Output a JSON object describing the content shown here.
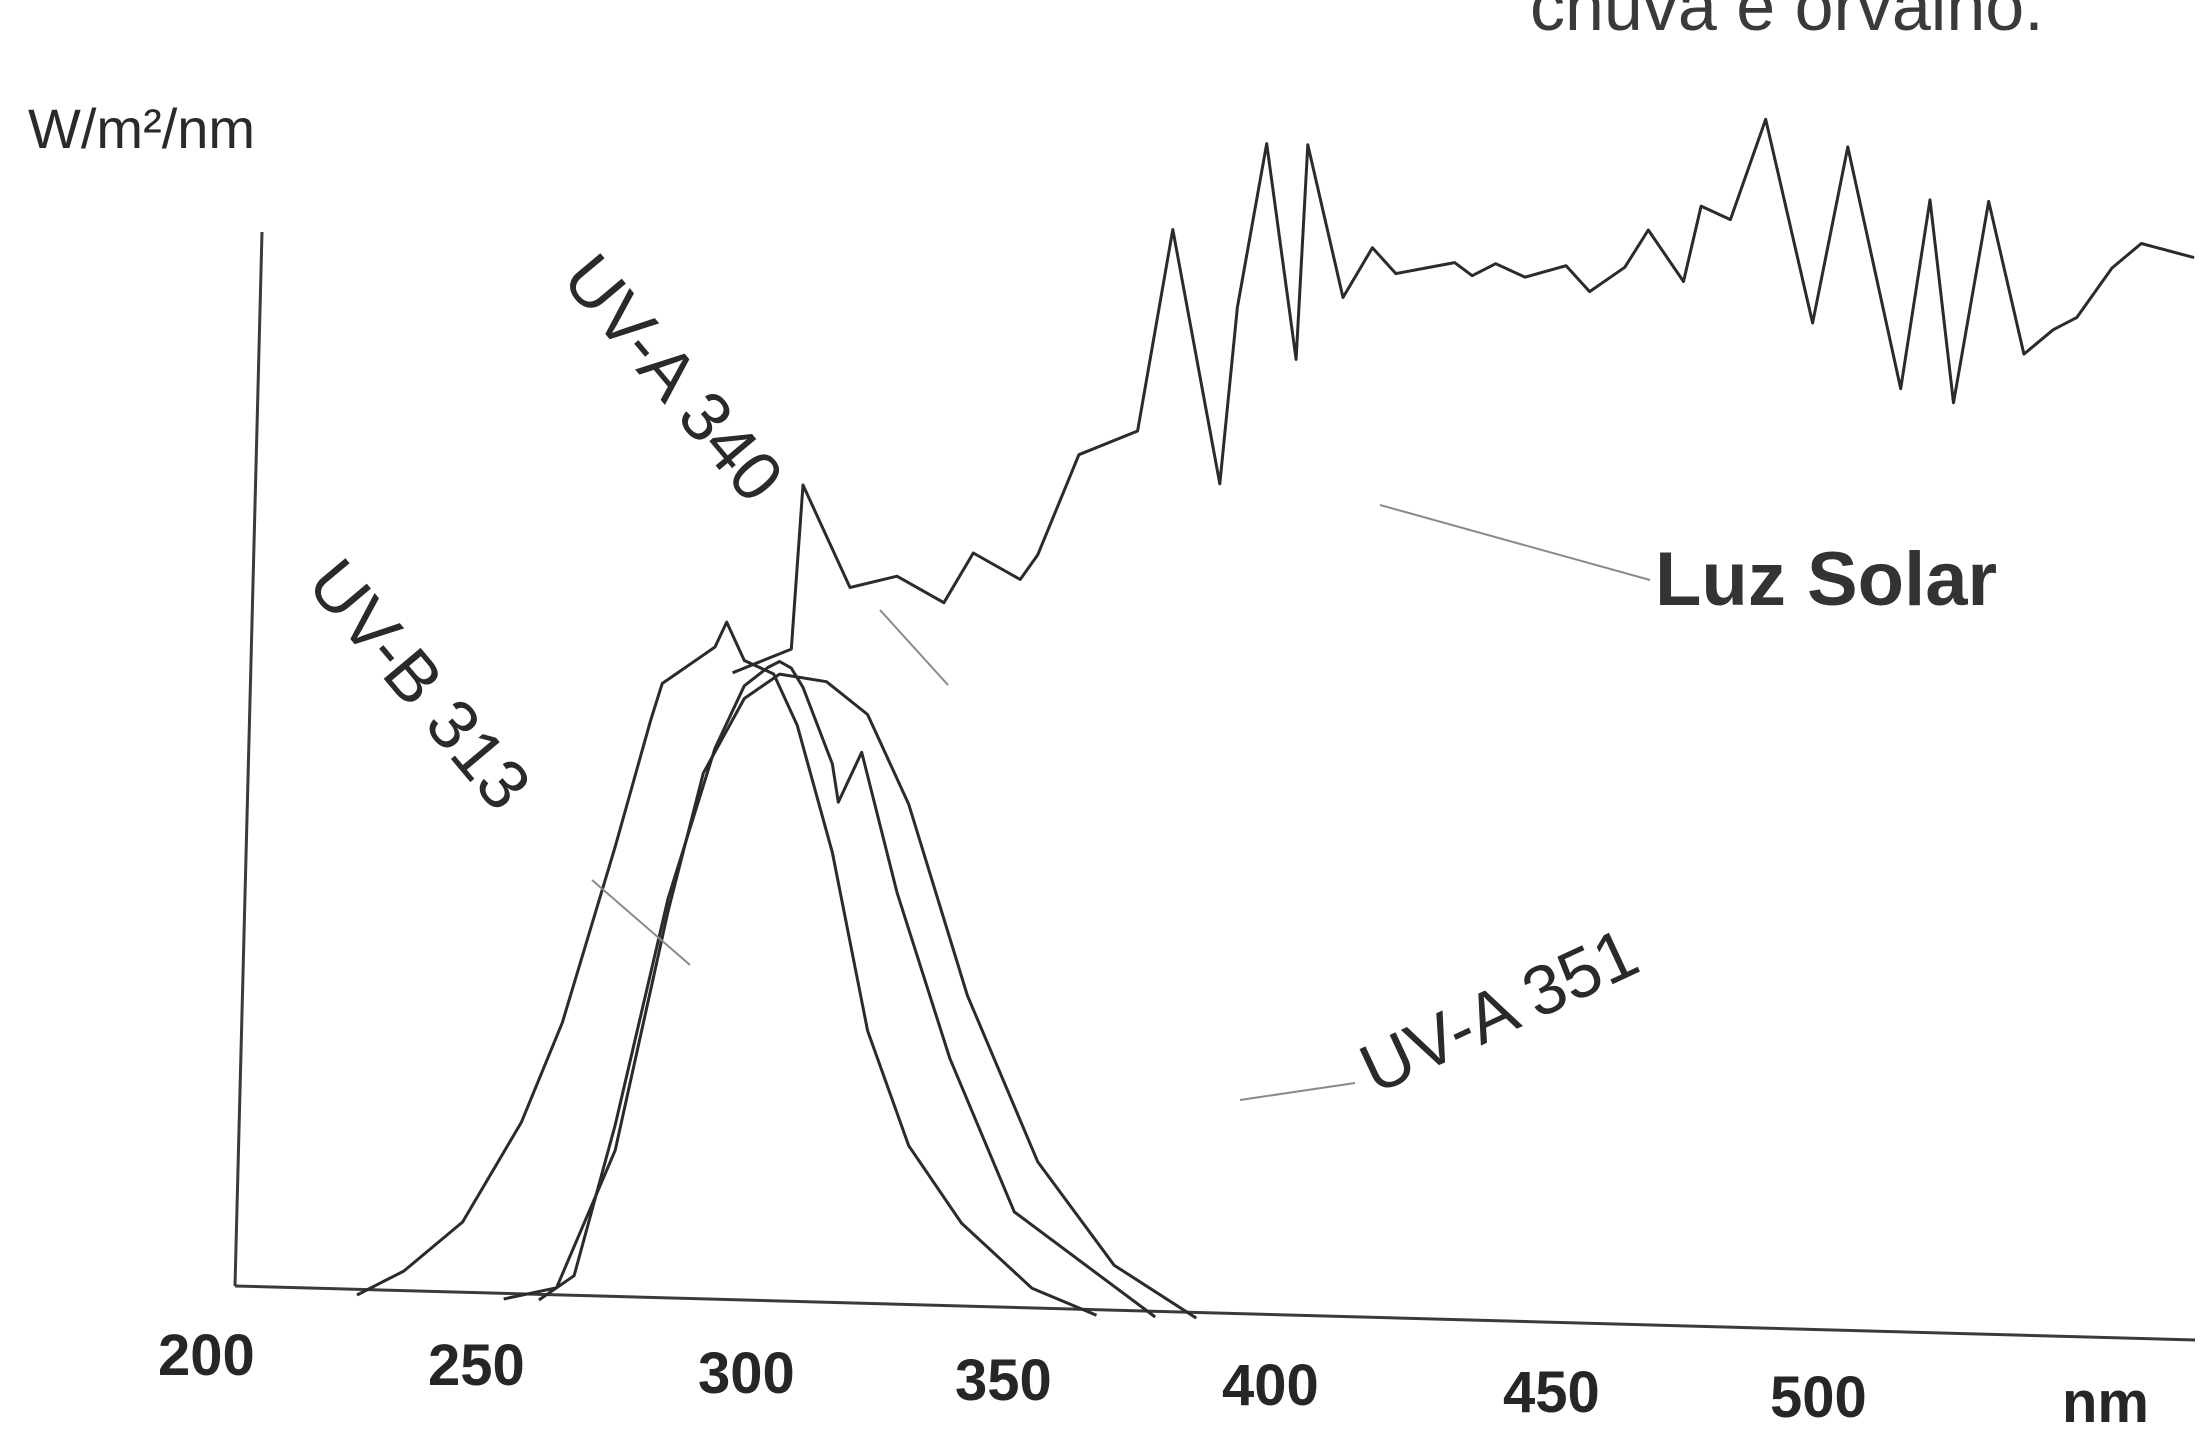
{
  "top_text": "chuva e orvalho.",
  "chart_data": {
    "type": "line",
    "ylabel": "W/m²/nm",
    "xlabel": "nm",
    "x_ticks": [
      "200",
      "250",
      "300",
      "350",
      "400",
      "450",
      "500"
    ],
    "xlim": [
      200,
      545
    ],
    "ylim": [
      0,
      1.0
    ],
    "grid": false,
    "series": [
      {
        "name": "UV-B 313",
        "x": [
          231,
          239,
          249,
          259,
          266,
          275,
          281,
          283,
          286,
          289,
          292,
          294,
          297,
          302,
          306,
          312,
          318,
          325,
          334,
          346,
          357
        ],
        "y": [
          0.0,
          0.02,
          0.06,
          0.14,
          0.22,
          0.36,
          0.46,
          0.49,
          0.5,
          0.51,
          0.52,
          0.54,
          0.51,
          0.5,
          0.46,
          0.36,
          0.22,
          0.13,
          0.07,
          0.02,
          0.0
        ]
      },
      {
        "name": "UV-A 340",
        "x": [
          262,
          268,
          275,
          284,
          292,
          297,
          301,
          303,
          305,
          307,
          312,
          313,
          317,
          323,
          332,
          343,
          367
        ],
        "y": [
          0.0,
          0.02,
          0.14,
          0.32,
          0.44,
          0.49,
          0.505,
          0.51,
          0.505,
          0.49,
          0.43,
          0.4,
          0.44,
          0.33,
          0.2,
          0.08,
          0.0
        ]
      },
      {
        "name": "UV-A 351",
        "x": [
          256,
          265,
          275,
          284,
          290,
          297,
          303,
          311,
          318,
          325,
          335,
          347,
          360,
          374
        ],
        "y": [
          0.0,
          0.01,
          0.12,
          0.31,
          0.42,
          0.48,
          0.5,
          0.495,
          0.47,
          0.4,
          0.25,
          0.12,
          0.04,
          0.0
        ]
      },
      {
        "name": "Luz Solar",
        "x": [
          295,
          305,
          307,
          315,
          323,
          331,
          336,
          344,
          347,
          354,
          364,
          370,
          378,
          381,
          386,
          391,
          393,
          399,
          404,
          408,
          418,
          421,
          425,
          430,
          437,
          441,
          447,
          451,
          457,
          460,
          465,
          471,
          479,
          485,
          494,
          499,
          503,
          509,
          515,
          520,
          524,
          530,
          535,
          544
        ],
        "y": [
          0.5,
          0.52,
          0.65,
          0.57,
          0.58,
          0.56,
          0.6,
          0.58,
          0.6,
          0.68,
          0.7,
          0.86,
          0.66,
          0.8,
          0.93,
          0.76,
          0.93,
          0.81,
          0.85,
          0.83,
          0.84,
          0.83,
          0.84,
          0.83,
          0.84,
          0.82,
          0.84,
          0.87,
          0.83,
          0.89,
          0.88,
          0.96,
          0.8,
          0.94,
          0.75,
          0.9,
          0.74,
          0.9,
          0.78,
          0.8,
          0.81,
          0.85,
          0.87,
          0.86
        ]
      }
    ]
  }
}
